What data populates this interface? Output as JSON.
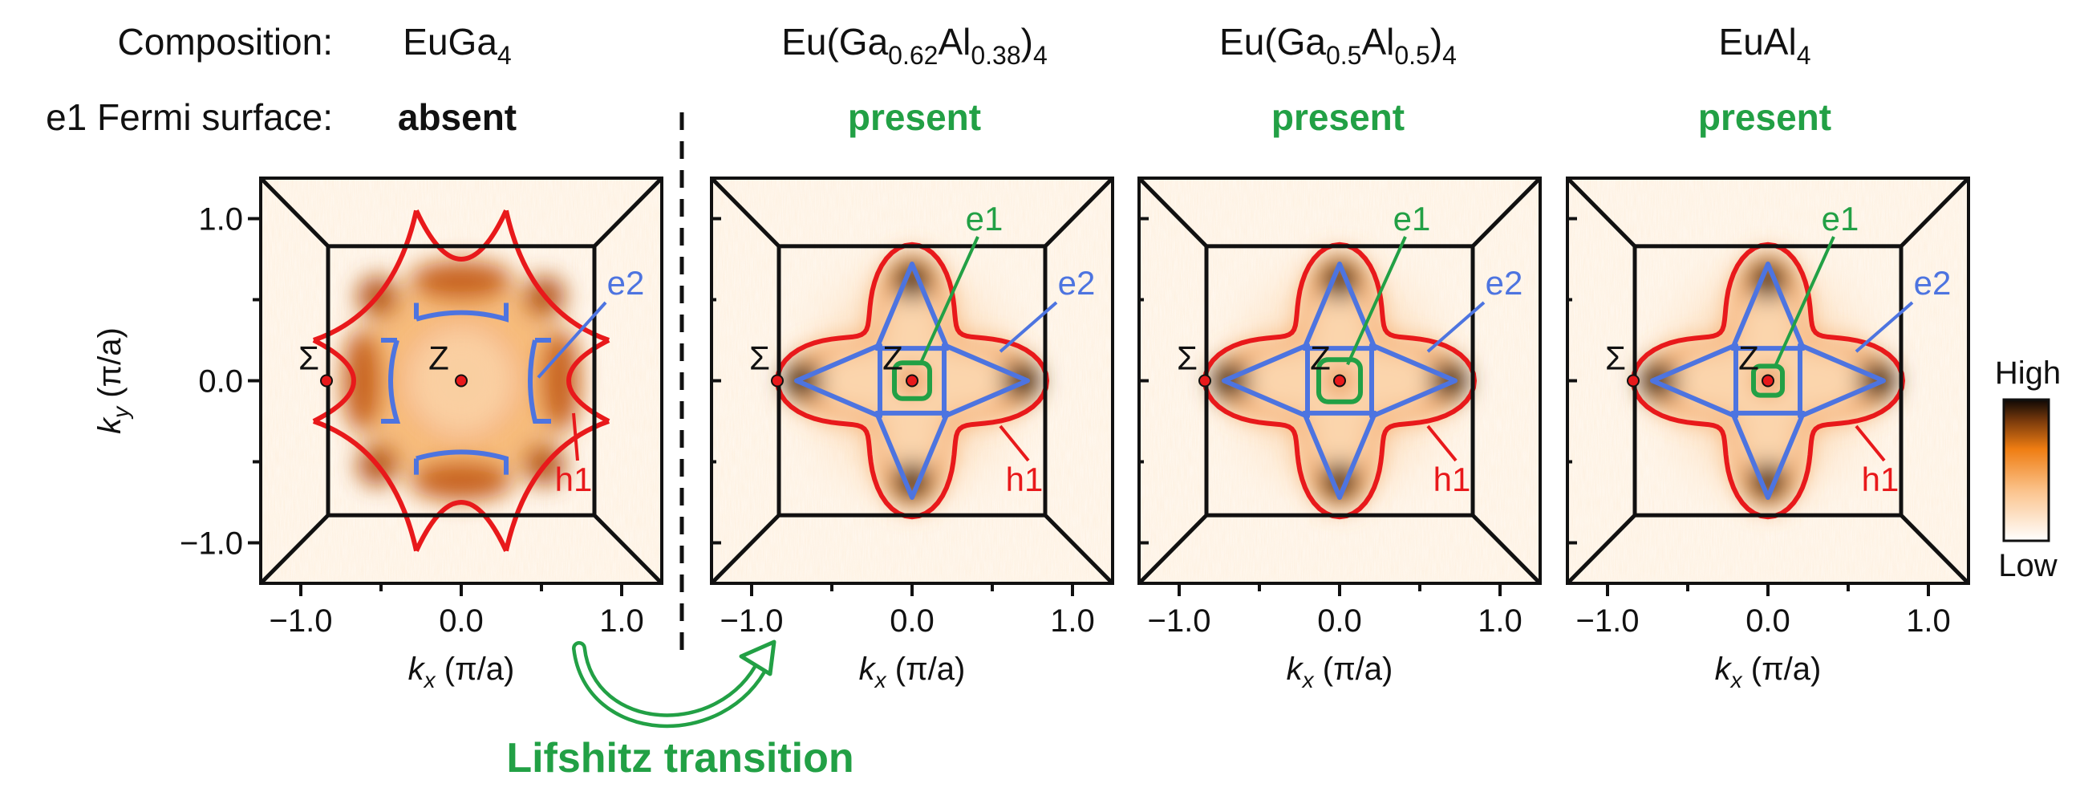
{
  "figure": {
    "row_label_composition": "Composition:",
    "row_label_fermi": "e1 Fermi surface:",
    "panels": [
      {
        "formula": [
          {
            "t": "EuGa"
          },
          {
            "sub": "4"
          }
        ],
        "status": "absent",
        "status_color": "#111111",
        "e1": false,
        "contours": "clover"
      },
      {
        "formula": [
          {
            "t": "Eu(Ga"
          },
          {
            "sub": "0.62"
          },
          {
            "t": "Al"
          },
          {
            "sub": "0.38"
          },
          {
            "t": ")"
          },
          {
            "sub": "4"
          }
        ],
        "status": "present",
        "status_color": "#22a045",
        "e1": true,
        "e1_size": 0.11,
        "contours": "star"
      },
      {
        "formula": [
          {
            "t": "Eu(Ga"
          },
          {
            "sub": "0.5"
          },
          {
            "t": "Al"
          },
          {
            "sub": "0.5"
          },
          {
            "t": ")"
          },
          {
            "sub": "4"
          }
        ],
        "status": "present",
        "status_color": "#22a045",
        "e1": true,
        "e1_size": 0.13,
        "contours": "star"
      },
      {
        "formula": [
          {
            "t": "EuAl"
          },
          {
            "sub": "4"
          }
        ],
        "status": "present",
        "status_color": "#22a045",
        "e1": true,
        "e1_size": 0.09,
        "contours": "star"
      }
    ],
    "axes": {
      "x_label": "k_x (π/a)",
      "y_label": "k_y (π/a)",
      "ticks": [
        -1.0,
        0.0,
        1.0
      ],
      "tick_labels": [
        "−1.0",
        "0.0",
        "1.0"
      ],
      "range": [
        -1.25,
        1.25
      ]
    },
    "points": {
      "sigma": "Σ",
      "z": "Z",
      "sigma_kx": -0.84
    },
    "bands": {
      "e1": "e1",
      "e2": "e2",
      "h1": "h1"
    },
    "colorbar": {
      "high": "High",
      "low": "Low"
    },
    "transition": "Lifshitz transition",
    "colors": {
      "h1": "#e8191b",
      "e2": "#4d74e0",
      "e1": "#22a045",
      "arrow": "#22a045",
      "point": "#e8191b"
    }
  }
}
